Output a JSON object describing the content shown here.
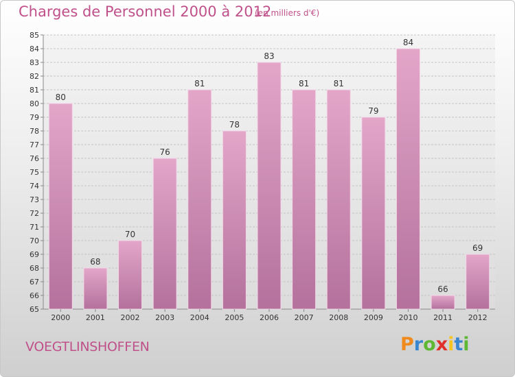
{
  "header": {
    "title": "Charges de Personnel 2000 à 2012",
    "subtitle": "(en milliers d'€)"
  },
  "footer": {
    "town": "VOEGTLINSHOFFEN",
    "logo": {
      "letters": [
        "P",
        "r",
        "o",
        "x",
        "i",
        "t",
        "i"
      ],
      "colors": [
        "#f08a1c",
        "#3a87d0",
        "#5fb833",
        "#e0302a",
        "#f6c41e",
        "#3a87d0",
        "#5fb833"
      ]
    }
  },
  "colors": {
    "bar": "#d98fba",
    "bar_dark": "#b86e9c",
    "title": "#c0508a"
  },
  "chart_data": {
    "type": "bar",
    "categories": [
      "2000",
      "2001",
      "2002",
      "2003",
      "2004",
      "2005",
      "2006",
      "2007",
      "2008",
      "2009",
      "2010",
      "2011",
      "2012"
    ],
    "values": [
      80,
      68,
      70,
      76,
      81,
      78,
      83,
      81,
      81,
      79,
      84,
      66,
      69
    ],
    "data_labels": [
      "80",
      "68",
      "70",
      "76",
      "81",
      "78",
      "83",
      "81",
      "81",
      "79",
      "84",
      "66",
      "69"
    ],
    "ylim": [
      65,
      85
    ],
    "yticks": [
      "65",
      "66",
      "67",
      "68",
      "69",
      "70",
      "71",
      "72",
      "73",
      "74",
      "75",
      "76",
      "77",
      "78",
      "79",
      "80",
      "81",
      "82",
      "83",
      "84",
      "85"
    ],
    "grid": true
  }
}
